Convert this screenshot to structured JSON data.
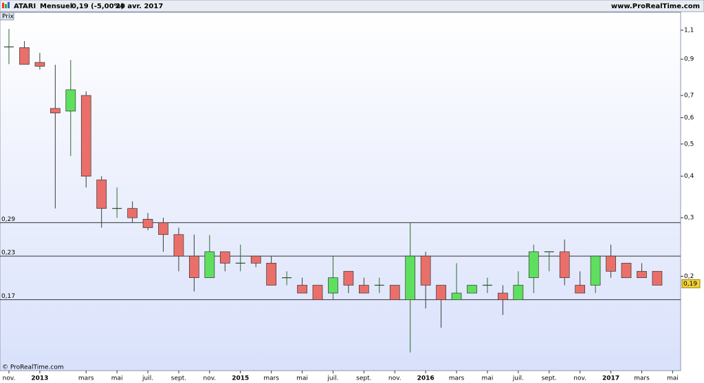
{
  "header": {
    "symbol": "ATARI",
    "period": "Mensuel",
    "quote": "0,19 (-5,00%)",
    "date": "20 avr. 2017",
    "site": "www.ProRealTime.com"
  },
  "chart_data": {
    "type": "candlestick",
    "panel_label": "Prix",
    "watermark": "© ProRealTime.com",
    "categories": [
      "nov.",
      null,
      "2013",
      null,
      null,
      "mars",
      null,
      "mai",
      null,
      "juil.",
      null,
      "sept.",
      null,
      "nov.",
      null,
      "2015",
      null,
      "mars",
      null,
      "mai",
      null,
      "juil.",
      null,
      "sept.",
      null,
      "nov.",
      null,
      "2016",
      null,
      "mars",
      null,
      "mai",
      null,
      "juil.",
      null,
      "sept.",
      null,
      "nov.",
      null,
      "2017",
      null,
      "mars",
      null,
      "mai"
    ],
    "open": [
      0.98,
      0.975,
      0.88,
      0.64,
      0.628,
      0.7,
      0.39,
      0.32,
      0.32,
      0.297,
      0.29,
      0.267,
      0.23,
      0.198,
      0.237,
      0.219,
      0.23,
      0.219,
      0.198,
      0.188,
      0.188,
      0.178,
      0.207,
      0.188,
      0.188,
      0.188,
      0.17,
      0.23,
      0.188,
      0.17,
      0.178,
      0.188,
      0.178,
      0.17,
      0.198,
      0.237,
      0.237,
      0.188,
      0.188,
      0.23,
      0.219,
      0.207,
      0.207,
      null
    ],
    "high": [
      1.11,
      1.02,
      0.94,
      0.866,
      0.895,
      0.72,
      0.4,
      0.37,
      0.336,
      0.31,
      0.3,
      0.28,
      0.267,
      0.266,
      0.237,
      0.249,
      0.23,
      0.23,
      0.207,
      0.198,
      0.188,
      0.23,
      0.207,
      0.198,
      0.198,
      0.188,
      0.29,
      0.237,
      0.188,
      0.219,
      0.188,
      0.198,
      0.188,
      0.207,
      0.249,
      0.237,
      0.258,
      0.207,
      0.23,
      0.249,
      0.219,
      0.219,
      0.207,
      null
    ],
    "low": [
      0.87,
      0.868,
      0.838,
      0.32,
      0.46,
      0.37,
      0.28,
      0.3,
      0.29,
      0.275,
      0.237,
      0.207,
      0.18,
      0.198,
      0.207,
      0.207,
      0.213,
      0.188,
      0.188,
      0.178,
      0.17,
      0.17,
      0.178,
      0.178,
      0.178,
      0.17,
      0.118,
      0.16,
      0.14,
      0.17,
      0.178,
      0.178,
      0.153,
      0.17,
      0.178,
      0.207,
      0.188,
      0.178,
      0.178,
      0.198,
      0.198,
      0.198,
      0.188,
      null
    ],
    "close": [
      0.98,
      0.868,
      0.857,
      0.62,
      0.728,
      0.4,
      0.32,
      0.32,
      0.3,
      0.28,
      0.267,
      0.23,
      0.198,
      0.237,
      0.219,
      0.219,
      0.219,
      0.188,
      0.198,
      0.178,
      0.17,
      0.198,
      0.188,
      0.178,
      0.188,
      0.17,
      0.23,
      0.188,
      0.17,
      0.178,
      0.188,
      0.188,
      0.17,
      0.188,
      0.237,
      0.237,
      0.198,
      0.178,
      0.23,
      0.207,
      0.198,
      0.198,
      0.188,
      null
    ],
    "up_color": "#5ee05e",
    "down_color": "#ea6f6a",
    "log_scale": true,
    "ylim": [
      0.104,
      1.245
    ],
    "yticks": [
      {
        "value": 1.1,
        "label": "1,1"
      },
      {
        "value": 0.9,
        "label": "0,9"
      },
      {
        "value": 0.7,
        "label": "0,7"
      },
      {
        "value": 0.6,
        "label": "0,6"
      },
      {
        "value": 0.5,
        "label": "0,5"
      },
      {
        "value": 0.4,
        "label": "0,4"
      },
      {
        "value": 0.3,
        "label": "0,3"
      },
      {
        "value": 0.2,
        "label": "0,2"
      }
    ],
    "hlines": [
      {
        "value": 0.29,
        "label": "0,29"
      },
      {
        "value": 0.23,
        "label": "0,23"
      },
      {
        "value": 0.17,
        "label": "0,17"
      }
    ],
    "last_price": {
      "value": 0.19,
      "label": "0,19"
    }
  }
}
